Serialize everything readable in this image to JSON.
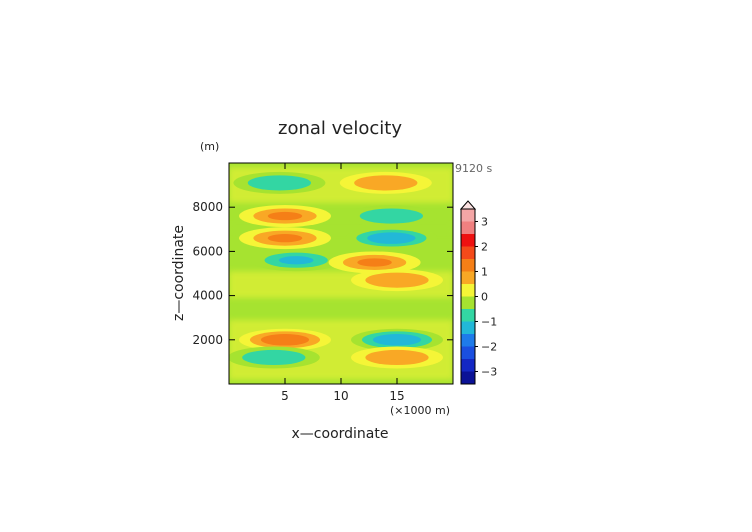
{
  "chart_data": {
    "type": "heatmap",
    "title": "zonal velocity",
    "xlabel": "x—coordinate",
    "ylabel": "z—coordinate",
    "x_unit": "(×1000 m)",
    "y_unit": "(m)",
    "time_label": "9120 s",
    "xlim": [
      0,
      20
    ],
    "ylim": [
      0,
      10000
    ],
    "x_ticks": [
      5,
      10,
      15
    ],
    "y_ticks": [
      2000,
      4000,
      6000,
      8000
    ],
    "x_tick_labels": [
      "5",
      "10",
      "15"
    ],
    "y_tick_labels": [
      "2000",
      "4000",
      "6000",
      "8000"
    ],
    "colorbar": {
      "ticks": [
        3,
        2,
        1,
        0,
        -1,
        -2,
        -3
      ],
      "tick_labels": [
        "3",
        "2",
        "1",
        "0",
        "−1",
        "−2",
        "−3"
      ],
      "levels": [
        {
          "value": 3.25,
          "color": "#f4a6a6"
        },
        {
          "value": 2.75,
          "color": "#f08080"
        },
        {
          "value": 2.25,
          "color": "#ee1111"
        },
        {
          "value": 1.75,
          "color": "#f44a1a"
        },
        {
          "value": 1.25,
          "color": "#f57f17"
        },
        {
          "value": 0.75,
          "color": "#f9a825"
        },
        {
          "value": 0.25,
          "color": "#f5f537"
        },
        {
          "value": -0.25,
          "color": "#a6e330"
        },
        {
          "value": -0.75,
          "color": "#33d6a3"
        },
        {
          "value": -1.25,
          "color": "#22b8d8"
        },
        {
          "value": -1.75,
          "color": "#1e7bea"
        },
        {
          "value": -2.25,
          "color": "#1a4fe0"
        },
        {
          "value": -2.75,
          "color": "#1428c4"
        },
        {
          "value": -3.25,
          "color": "#0b1296"
        }
      ]
    },
    "features": [
      {
        "x": 4.5,
        "z": 9100,
        "v": -0.9
      },
      {
        "x": 14.0,
        "z": 9100,
        "v": 0.9
      },
      {
        "x": 5.0,
        "z": 7600,
        "v": 1.0
      },
      {
        "x": 14.5,
        "z": 7600,
        "v": -0.9
      },
      {
        "x": 5.0,
        "z": 6600,
        "v": 1.0
      },
      {
        "x": 14.5,
        "z": 6600,
        "v": -1.2
      },
      {
        "x": 6.0,
        "z": 5600,
        "v": -1.0
      },
      {
        "x": 13.0,
        "z": 5500,
        "v": 1.0
      },
      {
        "x": 15.0,
        "z": 4700,
        "v": 0.9
      },
      {
        "x": 5.0,
        "z": 2000,
        "v": 1.1
      },
      {
        "x": 15.0,
        "z": 2000,
        "v": -1.4
      },
      {
        "x": 4.0,
        "z": 1200,
        "v": -0.9
      },
      {
        "x": 15.0,
        "z": 1200,
        "v": 0.8
      }
    ]
  }
}
